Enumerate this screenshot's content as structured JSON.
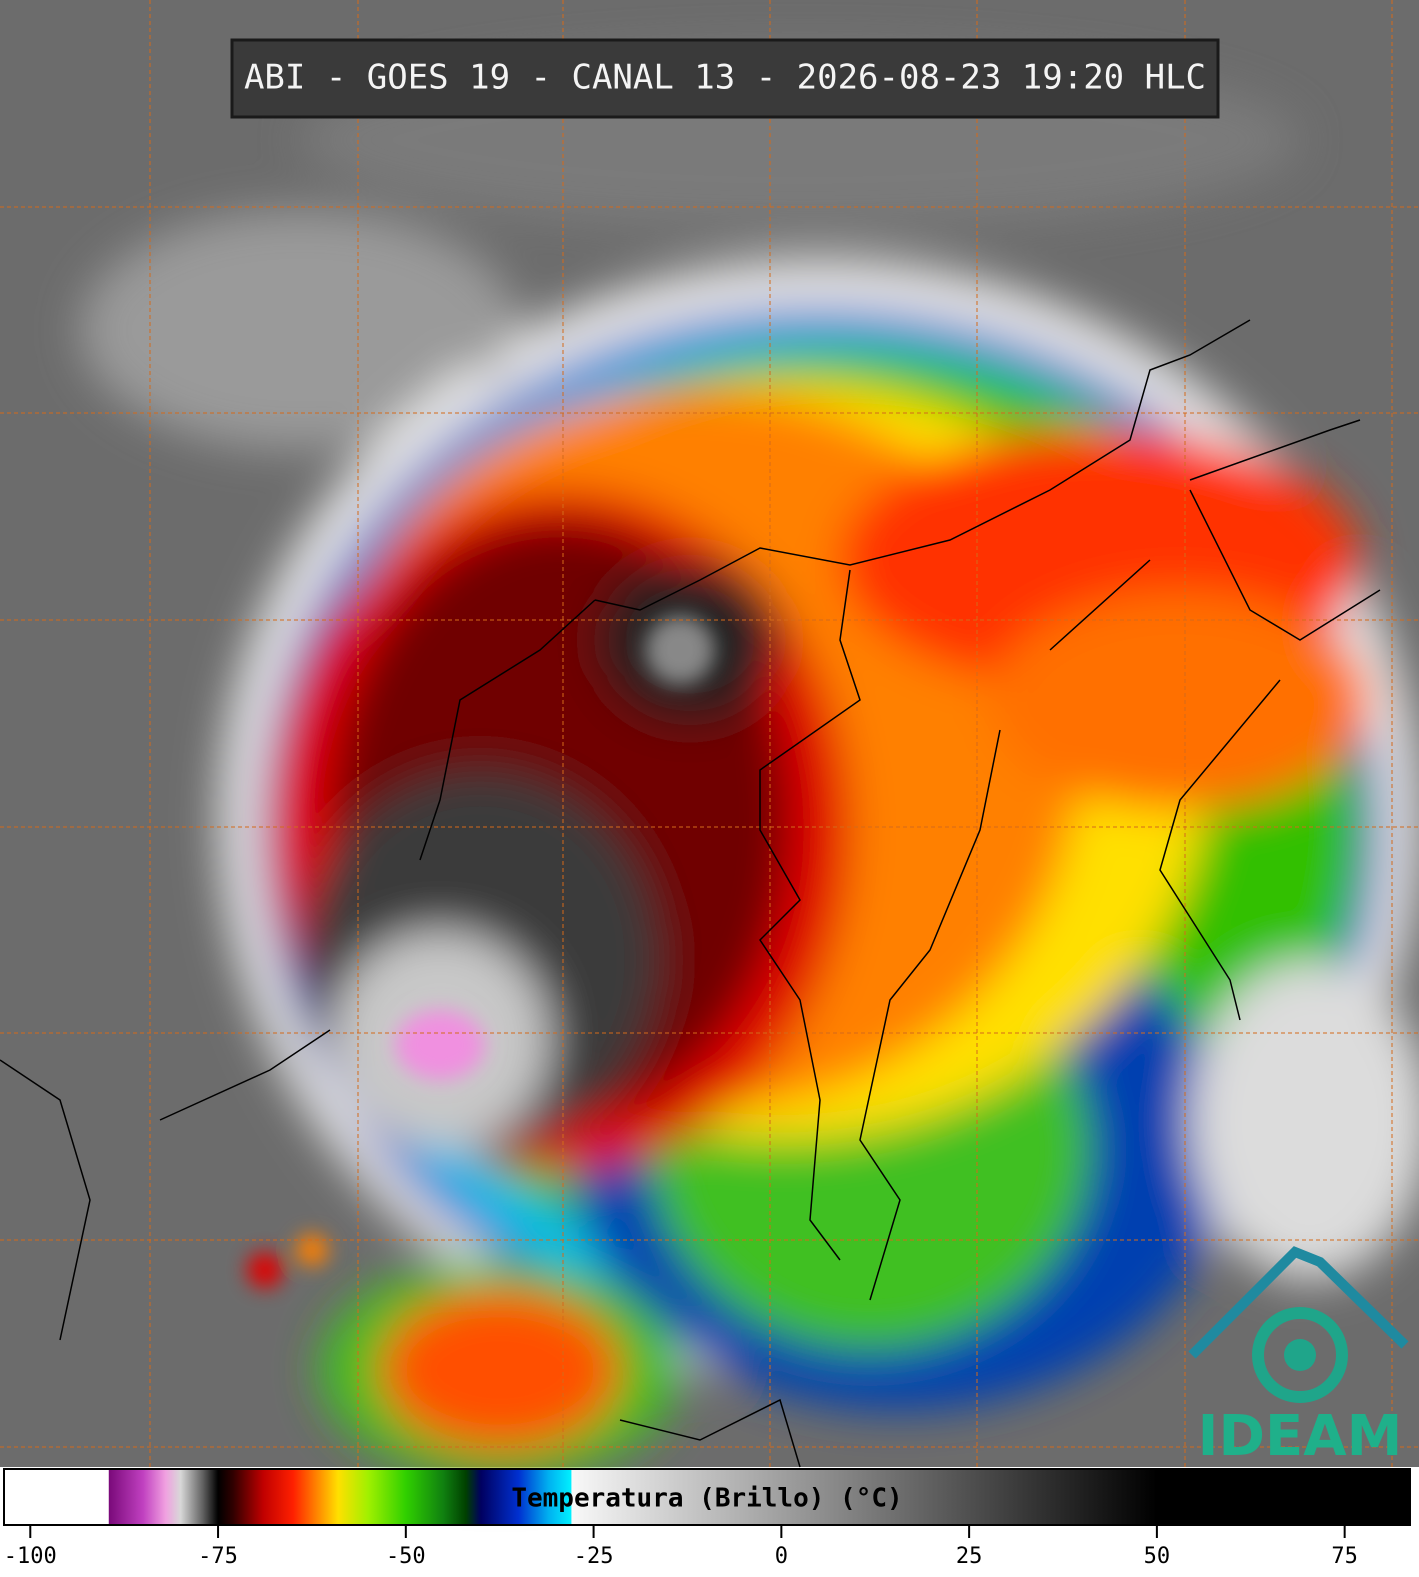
{
  "title": "ABI - GOES 19 - CANAL 13 - 2026-08-23 19:20 HLC",
  "logo": "IDEAM",
  "colorbar": {
    "label": "Temperatura (Brillo) (°C)",
    "lim": [
      -103.5,
      83.7
    ],
    "ticks": [
      -100,
      -75,
      -50,
      -25,
      0,
      25,
      50,
      75
    ],
    "stops": [
      [
        -103.5,
        "#ffffff"
      ],
      [
        -89.6,
        "#ffffff"
      ],
      [
        -89.5,
        "#7a0a7a"
      ],
      [
        -85,
        "#c040c0"
      ],
      [
        -82,
        "#f0a0e0"
      ],
      [
        -80,
        "#d8d8d8"
      ],
      [
        -77,
        "#606060"
      ],
      [
        -75,
        "#000000"
      ],
      [
        -73,
        "#300000"
      ],
      [
        -69,
        "#c00000"
      ],
      [
        -65,
        "#ff2000"
      ],
      [
        -62,
        "#ff8000"
      ],
      [
        -59,
        "#ffe000"
      ],
      [
        -55,
        "#a0f000"
      ],
      [
        -50,
        "#30d000"
      ],
      [
        -45,
        "#108010"
      ],
      [
        -42,
        "#004000"
      ],
      [
        -40,
        "#000060"
      ],
      [
        -35,
        "#0030d0"
      ],
      [
        -31,
        "#00b0f0"
      ],
      [
        -28,
        "#00f0ff"
      ],
      [
        -27.9,
        "#f8f8f8"
      ],
      [
        50,
        "#000000"
      ],
      [
        83.7,
        "#000000"
      ]
    ]
  }
}
